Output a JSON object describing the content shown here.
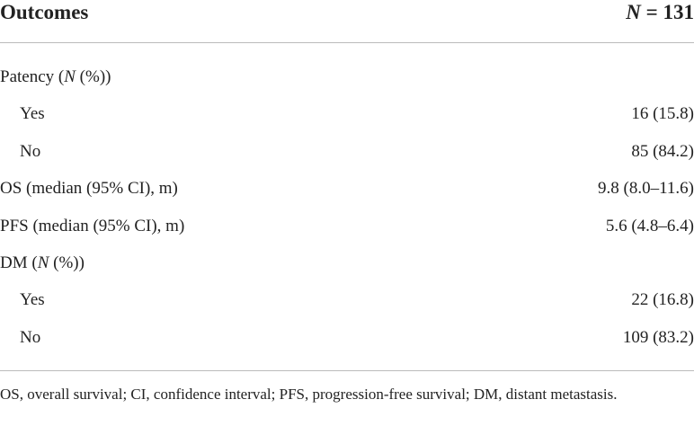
{
  "table": {
    "header": [
      "Outcomes",
      "N = 131"
    ],
    "rows": [
      {
        "label": "Patency (N (%))",
        "rows": [
          [
            "Yes",
            "16 (15.8)"
          ],
          [
            "No",
            "85 (84.2)"
          ]
        ]
      },
      {
        "label": "OS (median (95% CI), m)",
        "value": "9.8 (8.0–11.6)"
      },
      {
        "label": "PFS (median (95% CI), m)",
        "value": "5.6 (4.8–6.4)"
      },
      {
        "label": "DM (N (%))",
        "rows": [
          [
            "Yes",
            "22 (16.8)"
          ],
          [
            "No",
            "109 (83.2)"
          ]
        ]
      }
    ],
    "footnote": "OS, overall survival; CI, confidence interval; PFS, progression-free survival; DM, distant metastasis."
  }
}
